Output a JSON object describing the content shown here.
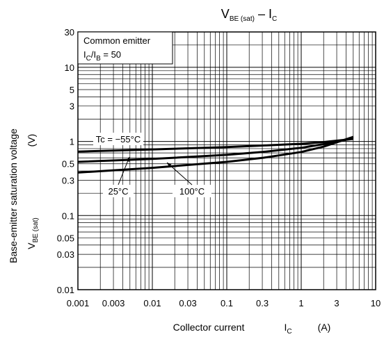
{
  "chart_data": {
    "type": "line",
    "title": {
      "main": "V",
      "main_sub": "BE (sat)",
      "dash": " – I",
      "dash_sub": "C"
    },
    "xlabel": {
      "text": "Collector current",
      "symbol": "I",
      "symbol_sub": "C",
      "unit": "(A)"
    },
    "ylabel": {
      "line1": "Base-emitter saturation voltage",
      "line2_symbol": "V",
      "line2_sub": "BE (sat)",
      "line2_unit": "(V)"
    },
    "x_scale": "log",
    "y_scale": "log",
    "xlim": [
      0.001,
      10
    ],
    "ylim": [
      0.01,
      30
    ],
    "grid": true,
    "x_ticks": [
      {
        "v": 0.001,
        "label": "0.001"
      },
      {
        "v": 0.003,
        "label": "0.003"
      },
      {
        "v": 0.01,
        "label": "0.01"
      },
      {
        "v": 0.03,
        "label": "0.03"
      },
      {
        "v": 0.1,
        "label": "0.1"
      },
      {
        "v": 0.3,
        "label": "0.3"
      },
      {
        "v": 1,
        "label": "1"
      },
      {
        "v": 3,
        "label": "3"
      },
      {
        "v": 10,
        "label": "10"
      }
    ],
    "y_ticks": [
      {
        "v": 0.01,
        "label": "0.01"
      },
      {
        "v": 0.03,
        "label": "0.03"
      },
      {
        "v": 0.05,
        "label": "0.05"
      },
      {
        "v": 0.1,
        "label": "0.1"
      },
      {
        "v": 0.3,
        "label": "0.3"
      },
      {
        "v": 0.5,
        "label": "0.5"
      },
      {
        "v": 1,
        "label": "1"
      },
      {
        "v": 3,
        "label": "3"
      },
      {
        "v": 5,
        "label": "5"
      },
      {
        "v": 10,
        "label": "10"
      },
      {
        "v": 30,
        "label": "30"
      }
    ],
    "y_top_label": "30",
    "condition": {
      "line1": "Common emitter",
      "ratio_a": "I",
      "ratio_a_sub": "C",
      "ratio_sep": "/I",
      "ratio_b_sub": "B",
      "ratio_value": " = 50"
    },
    "series": [
      {
        "name": "Tc = −55°C",
        "x": [
          0.001,
          0.01,
          0.1,
          0.3,
          1,
          2,
          5
        ],
        "y": [
          0.73,
          0.78,
          0.84,
          0.88,
          0.93,
          0.98,
          1.08
        ]
      },
      {
        "name": "25°C",
        "x": [
          0.001,
          0.01,
          0.1,
          0.3,
          1,
          2,
          5
        ],
        "y": [
          0.53,
          0.58,
          0.66,
          0.72,
          0.82,
          0.92,
          1.1
        ]
      },
      {
        "name": "100°C",
        "x": [
          0.001,
          0.01,
          0.1,
          0.3,
          1,
          2,
          5
        ],
        "y": [
          0.38,
          0.44,
          0.53,
          0.6,
          0.72,
          0.85,
          1.15
        ]
      }
    ],
    "annotations": [
      {
        "series": 0,
        "label": "Tc = −55°C"
      },
      {
        "series": 1,
        "label": "25°C"
      },
      {
        "series": 2,
        "label": "100°C"
      }
    ]
  }
}
